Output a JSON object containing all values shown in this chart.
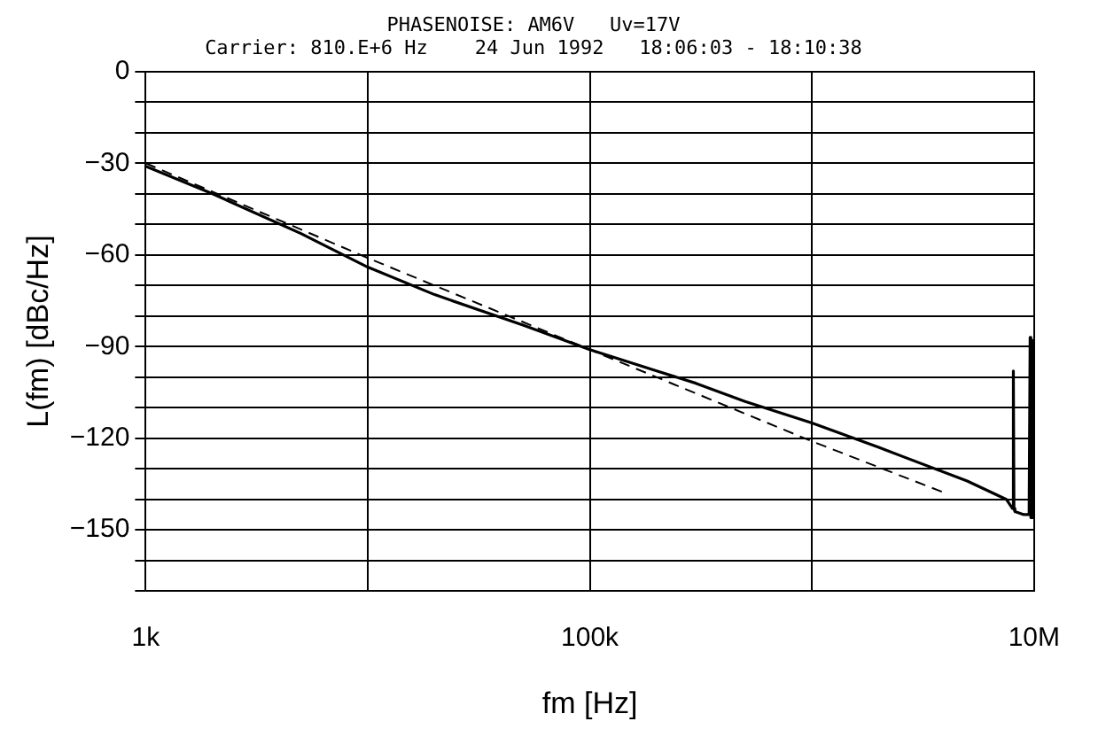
{
  "chart_data": {
    "type": "line",
    "title": "PHASENOISE: AM6V   Uv=17V",
    "subtitle": "Carrier: 810.E+6 Hz    24 Jun 1992   18:06:03 - 18:10:38",
    "xlabel": "fm [Hz]",
    "ylabel": "L(fm) [dBc/Hz]",
    "log": "x",
    "grid": true,
    "xlim": [
      1000,
      10000000
    ],
    "xticks": [
      {
        "value": 1000,
        "label": "1k"
      },
      {
        "value": 10000,
        "label": null
      },
      {
        "value": 100000,
        "label": "100k"
      },
      {
        "value": 1000000,
        "label": null
      },
      {
        "value": 10000000,
        "label": "10M"
      }
    ],
    "ylim": [
      -170,
      0
    ],
    "yticks": [
      {
        "value": -170,
        "label": null
      },
      {
        "value": -160,
        "label": null
      },
      -150,
      {
        "value": -140,
        "label": null
      },
      {
        "value": -130,
        "label": null
      },
      -120,
      {
        "value": -110,
        "label": null
      },
      {
        "value": -100,
        "label": null
      },
      -90,
      {
        "value": -80,
        "label": null
      },
      {
        "value": -70,
        "label": null
      },
      -60,
      {
        "value": -50,
        "label": null
      },
      {
        "value": -40,
        "label": null
      },
      -30,
      {
        "value": -20,
        "label": null
      },
      {
        "value": -10,
        "label": null
      },
      0
    ],
    "series": [
      {
        "color": "#000000",
        "line_style": "solid",
        "x": [
          1000,
          2000,
          5000,
          10000,
          20000,
          50000,
          100000,
          200000,
          300000,
          500000,
          1000000,
          2000000,
          5000000,
          7500000,
          8000000,
          8070000,
          8120000,
          8200000,
          9000000,
          9500000,
          9600000,
          9650000,
          9700000,
          9750000,
          9800000,
          9850000,
          9900000,
          10000000
        ],
        "values": [
          -31,
          -40,
          -53,
          -64,
          -73,
          -83,
          -91,
          -98,
          -102,
          -108,
          -115,
          -123,
          -134,
          -140,
          -143,
          -98,
          -143,
          -144,
          -145,
          -145,
          -87,
          -146,
          -90,
          -145,
          -88,
          -146,
          -89,
          -146
        ]
      },
      {
        "color": "#000000",
        "line_style": "dashed",
        "x": [
          1000,
          10000,
          100000,
          1000000,
          4000000
        ],
        "values": [
          -30,
          -61,
          -91,
          -121,
          -138
        ]
      }
    ]
  }
}
